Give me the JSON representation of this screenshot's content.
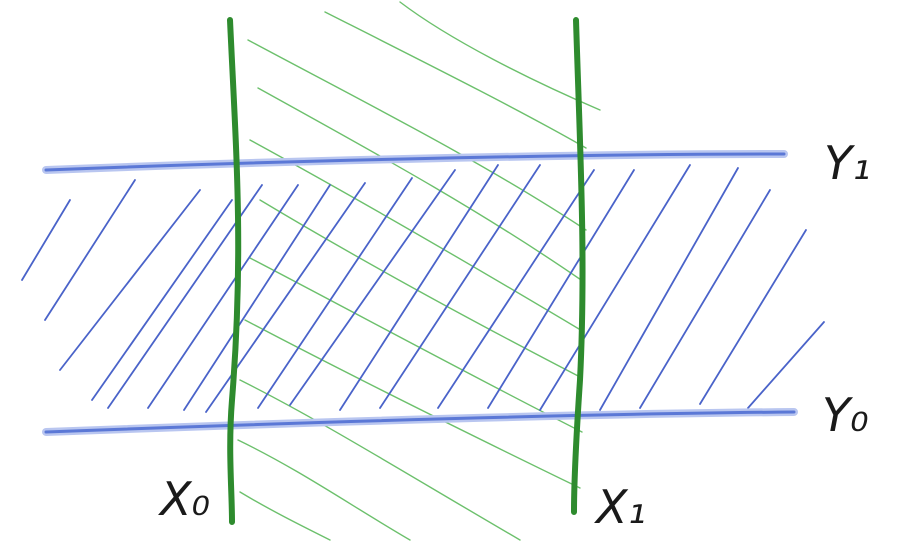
{
  "labels": {
    "y1": "Y₁",
    "y0": "Y₀",
    "x0": "X₀",
    "x1": "X₁"
  },
  "colors": {
    "horizontal_band": "#5b78d6",
    "horizontal_band_glow": "#b9c6f0",
    "vertical_lines": "#2e8b2e",
    "green_hatch": "#6cc06c",
    "blue_hatch": "#4a63c9",
    "ink": "#1a1a1a"
  }
}
